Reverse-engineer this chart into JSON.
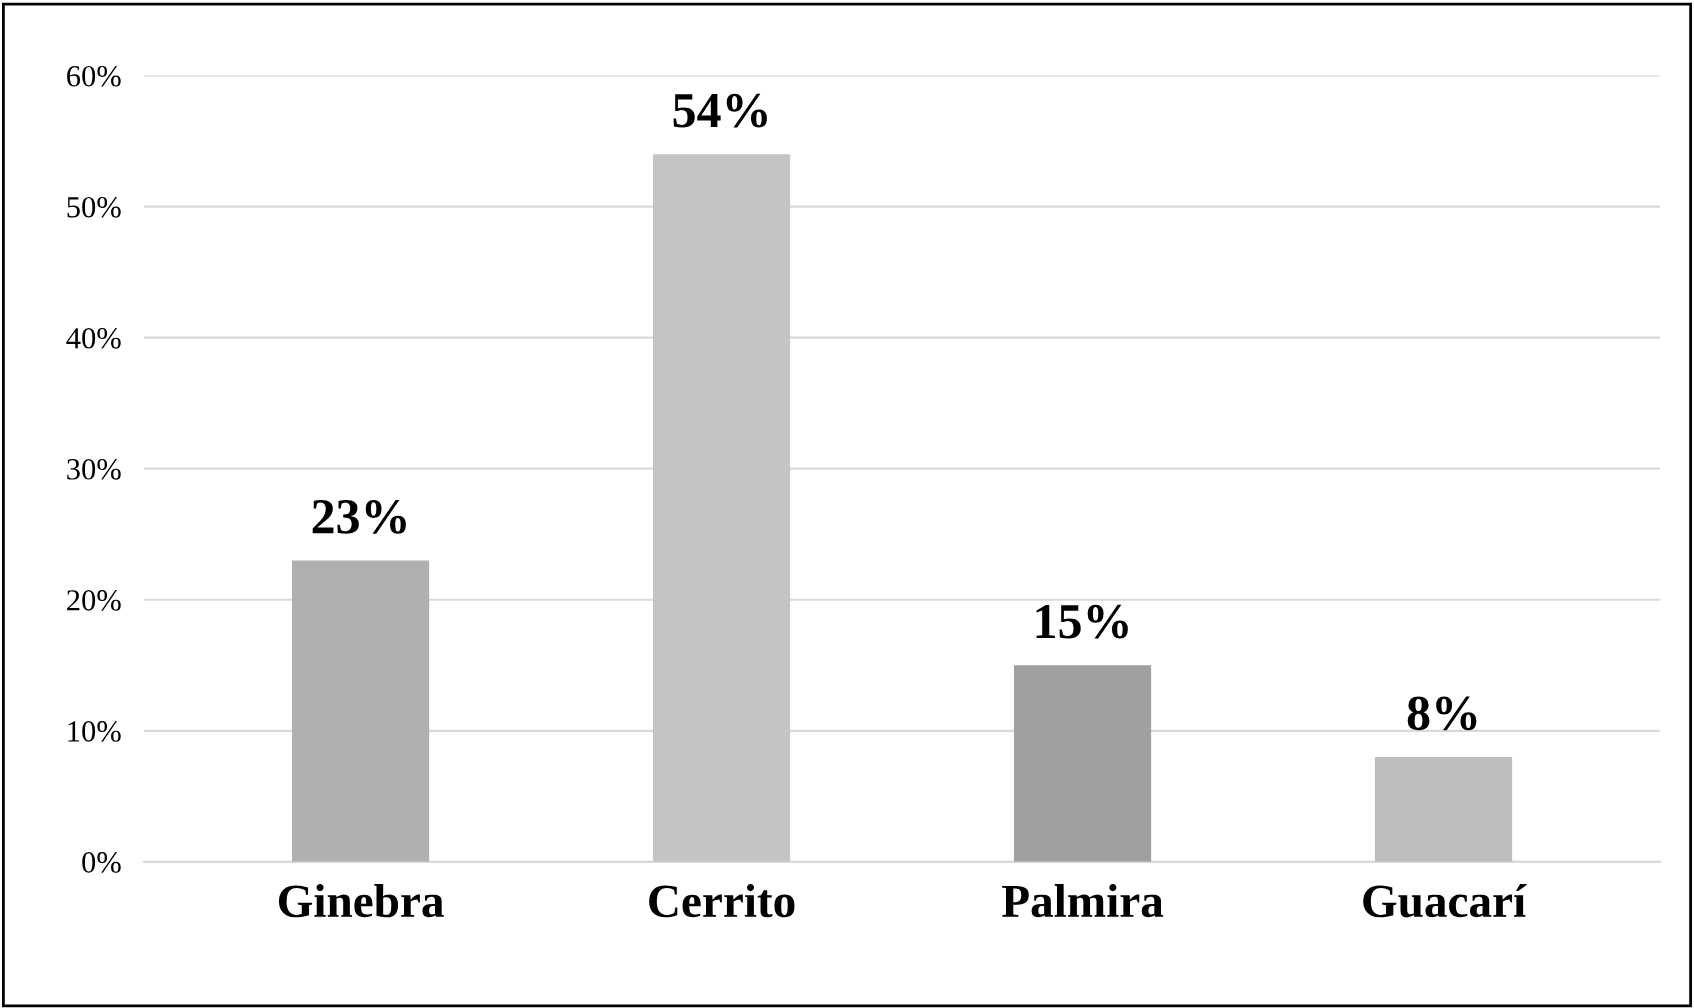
{
  "chart_data": {
    "type": "bar",
    "categories": [
      "Ginebra",
      "Cerrito",
      "Palmira",
      "Guacarí"
    ],
    "values": [
      23,
      54,
      15,
      8
    ],
    "value_labels": [
      "23%",
      "54%",
      "15%",
      "8%"
    ],
    "colors": [
      "#b0b0b0",
      "#c4c4c4",
      "#a0a0a0",
      "#bdbdbd"
    ],
    "ylim": [
      0,
      60
    ],
    "yticks": [
      {
        "value": 0,
        "label": "0%"
      },
      {
        "value": 10,
        "label": "10%"
      },
      {
        "value": 20,
        "label": "20%"
      },
      {
        "value": 30,
        "label": "30%"
      },
      {
        "value": 40,
        "label": "40%"
      },
      {
        "value": 50,
        "label": "50%"
      },
      {
        "value": 60,
        "label": "60%"
      }
    ],
    "grid": "y",
    "legend": false
  }
}
